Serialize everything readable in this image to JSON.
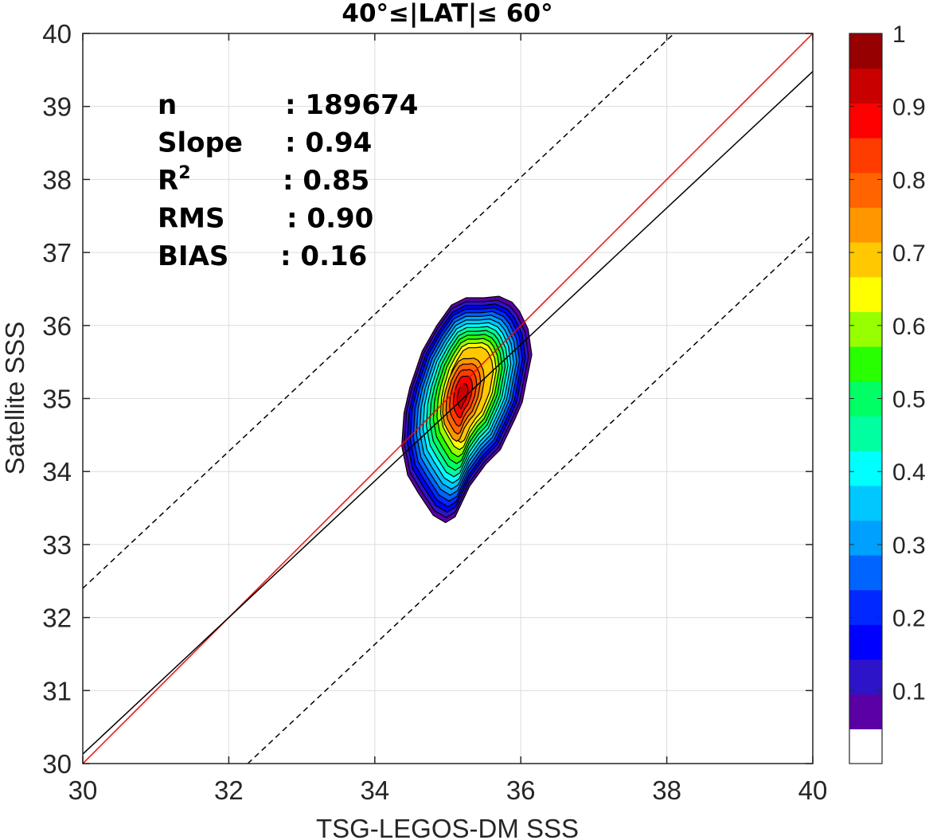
{
  "chart_data": {
    "type": "contour",
    "title": "40°≤|LAT|≤ 60°",
    "xlabel": "TSG-LEGOS-DM SSS",
    "ylabel": "Satellite SSS",
    "xlim": [
      30,
      40
    ],
    "ylim": [
      30,
      40
    ],
    "xticks": [
      "30",
      "32",
      "34",
      "36",
      "38",
      "40"
    ],
    "yticks": [
      "30",
      "31",
      "32",
      "33",
      "34",
      "35",
      "36",
      "37",
      "38",
      "39",
      "40"
    ],
    "grid": true,
    "stats": [
      {
        "label": "n",
        "value": ": 189674"
      },
      {
        "label": "Slope",
        "value": ": 0.94"
      },
      {
        "label": "R",
        "sup": "2",
        "value": ": 0.85"
      },
      {
        "label": "RMS",
        "value": ": 0.90"
      },
      {
        "label": "BIAS",
        "value": ": 0.16"
      }
    ],
    "lines": [
      {
        "name": "identity",
        "color": "#ff0000",
        "style": "solid",
        "points": [
          [
            30,
            30
          ],
          [
            40,
            40
          ]
        ]
      },
      {
        "name": "regression",
        "color": "#000000",
        "style": "solid",
        "points": [
          [
            30,
            30.13
          ],
          [
            40,
            39.48
          ]
        ]
      },
      {
        "name": "upper bound",
        "color": "#000000",
        "style": "dashed",
        "points": [
          [
            30,
            32.4
          ],
          [
            38.1,
            40
          ]
        ]
      },
      {
        "name": "lower bound",
        "color": "#000000",
        "style": "dashed",
        "points": [
          [
            32.26,
            30
          ],
          [
            40,
            37.26
          ]
        ]
      }
    ],
    "density": {
      "center": [
        35.02,
        34.85
      ],
      "levels": [
        0.05,
        0.1,
        0.15,
        0.2,
        0.25,
        0.3,
        0.35,
        0.4,
        0.45,
        0.5,
        0.55,
        0.6,
        0.65,
        0.7,
        0.75,
        0.8,
        0.85,
        0.9,
        0.95
      ],
      "outer_contour": [
        [
          34.97,
          33.3
        ],
        [
          35.1,
          33.38
        ],
        [
          35.3,
          33.8
        ],
        [
          35.52,
          34.1
        ],
        [
          35.72,
          34.3
        ],
        [
          35.92,
          34.72
        ],
        [
          36.02,
          34.95
        ],
        [
          36.15,
          35.6
        ],
        [
          36.1,
          35.95
        ],
        [
          35.98,
          36.2
        ],
        [
          35.88,
          36.32
        ],
        [
          35.7,
          36.4
        ],
        [
          35.5,
          36.38
        ],
        [
          35.25,
          36.38
        ],
        [
          35.05,
          36.28
        ],
        [
          34.85,
          36.0
        ],
        [
          34.65,
          35.65
        ],
        [
          34.48,
          35.15
        ],
        [
          34.4,
          34.8
        ],
        [
          34.37,
          34.35
        ],
        [
          34.45,
          33.95
        ],
        [
          34.6,
          33.7
        ],
        [
          34.8,
          33.4
        ]
      ],
      "peak": 1.0
    },
    "colorbar": {
      "range": [
        0,
        1
      ],
      "ticks": [
        "0.1",
        "0.2",
        "0.3",
        "0.4",
        "0.5",
        "0.6",
        "0.7",
        "0.8",
        "0.9",
        "1"
      ],
      "colors": [
        "#ffffff",
        "#5a00a5",
        "#2d14c8",
        "#0000ff",
        "#0028ff",
        "#0064ff",
        "#00a0ff",
        "#00c8ff",
        "#00ffff",
        "#00ffa0",
        "#00ff64",
        "#28ff00",
        "#96ff00",
        "#ffff00",
        "#ffc800",
        "#ff9600",
        "#ff6400",
        "#ff3c00",
        "#ff0000",
        "#c80000",
        "#960000"
      ]
    }
  }
}
